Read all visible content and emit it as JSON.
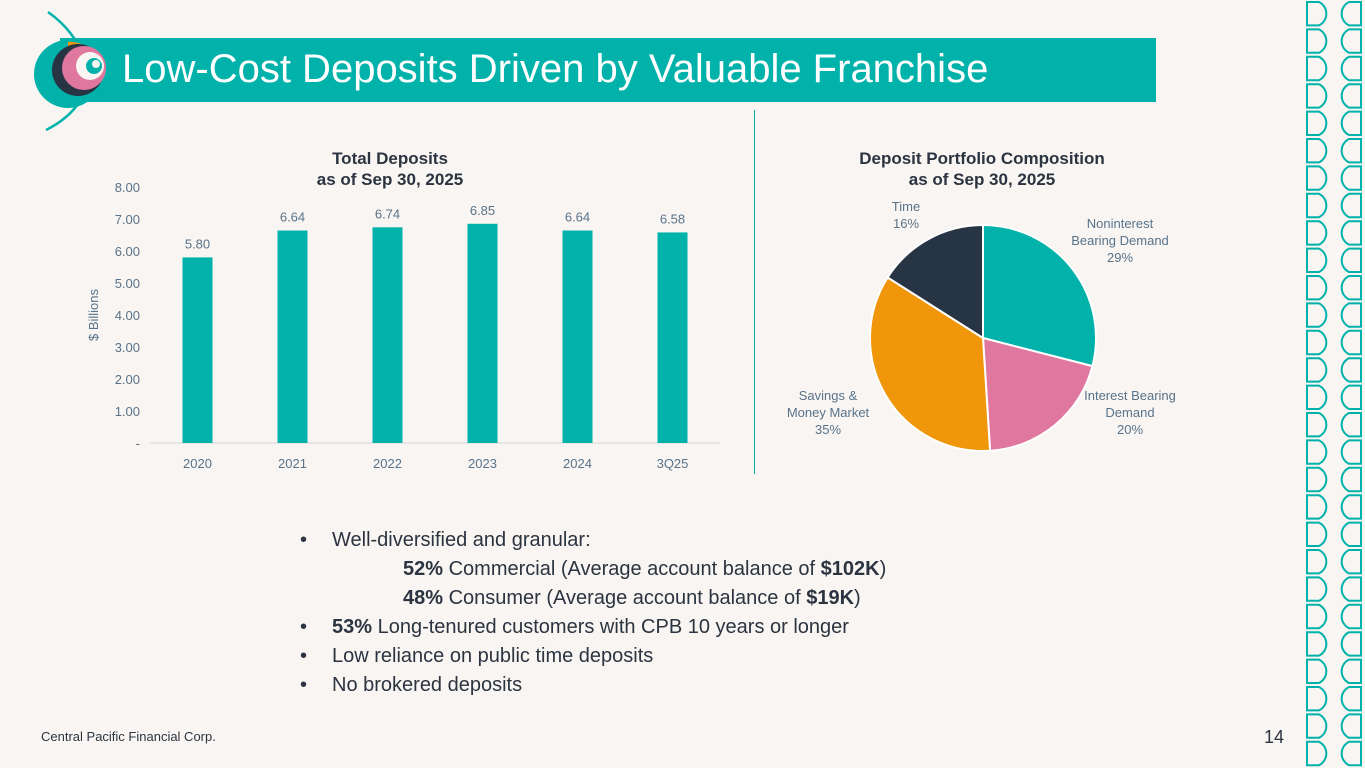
{
  "slide": {
    "title": "Low-Cost Deposits Driven by Valuable Franchise",
    "footer": "Central Pacific Financial Corp.",
    "page_number": "14"
  },
  "colors": {
    "teal": "#00b2a9",
    "pink": "#e0779e",
    "orange": "#f0960a",
    "navy": "#263444",
    "axis_text": "#59738a",
    "background": "#f8f5f2"
  },
  "chart_data": [
    {
      "type": "bar",
      "title": "Total Deposits",
      "subtitle": "as of Sep 30, 2025",
      "ylabel": "$ Billions",
      "xlabel": "",
      "categories": [
        "2020",
        "2021",
        "2022",
        "2023",
        "2024",
        "3Q25"
      ],
      "values": [
        5.8,
        6.64,
        6.74,
        6.85,
        6.64,
        6.58
      ],
      "value_labels": [
        "5.80",
        "6.64",
        "6.74",
        "6.85",
        "6.64",
        "6.58"
      ],
      "ylim": [
        0,
        8
      ],
      "yticks": [
        0,
        1,
        2,
        3,
        4,
        5,
        6,
        7,
        8
      ],
      "ytick_labels": [
        "-",
        "1.00",
        "2.00",
        "3.00",
        "4.00",
        "5.00",
        "6.00",
        "7.00",
        "8.00"
      ],
      "grid": false
    },
    {
      "type": "pie",
      "title": "Deposit Portfolio Composition",
      "subtitle": "as of Sep 30, 2025",
      "slices": [
        {
          "label_lines": [
            "Noninterest",
            "Bearing Demand"
          ],
          "pct_label": "29%",
          "value": 29,
          "color": "#00b2a9"
        },
        {
          "label_lines": [
            "Interest Bearing",
            "Demand"
          ],
          "pct_label": "20%",
          "value": 20,
          "color": "#e0779e"
        },
        {
          "label_lines": [
            "Savings &",
            "Money Market"
          ],
          "pct_label": "35%",
          "value": 35,
          "color": "#f0960a"
        },
        {
          "label_lines": [
            "Time"
          ],
          "pct_label": "16%",
          "value": 16,
          "color": "#263444"
        }
      ]
    }
  ],
  "bullets": {
    "b1": "Well-diversified and granular:",
    "b1_sub1_pct": "52%",
    "b1_sub1_text": " Commercial (Average account balance of ",
    "b1_sub1_amt": "$102K",
    "b1_sub1_end": ")",
    "b1_sub2_pct": "48%",
    "b1_sub2_text": " Consumer (Average account balance of ",
    "b1_sub2_amt": "$19K",
    "b1_sub2_end": ")",
    "b2_pct": "53%",
    "b2_text": " Long-tenured customers with CPB 10 years or longer",
    "b3": "Low reliance on public time deposits",
    "b4": "No brokered deposits",
    "bullet_char": "•"
  }
}
